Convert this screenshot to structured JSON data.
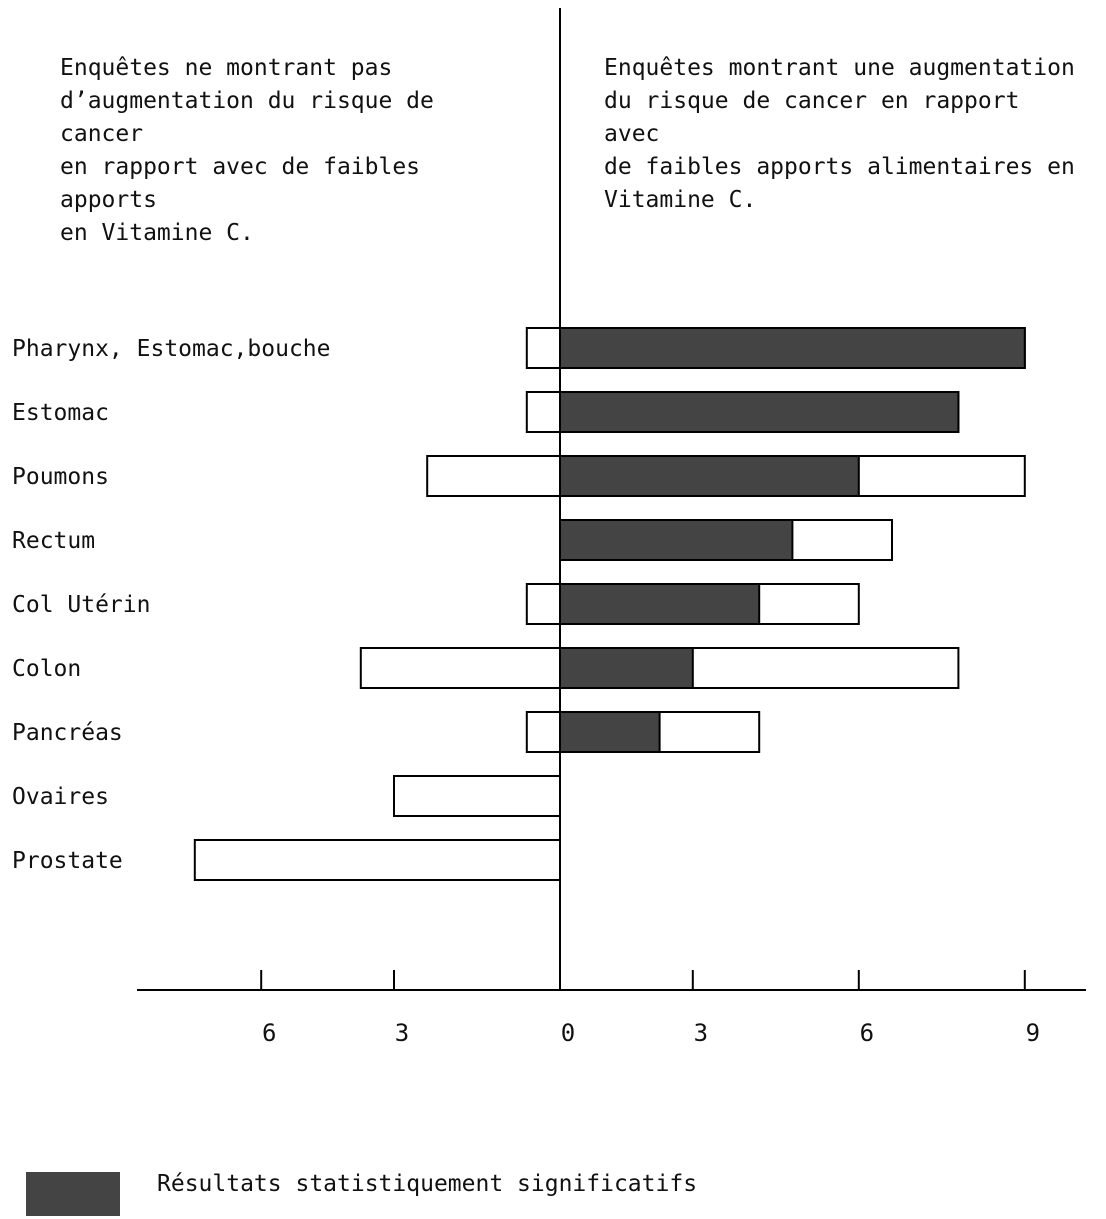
{
  "notes": {
    "left": "Enquêtes ne montrant pas\nd’augmentation du risque de cancer\nen rapport avec de faibles apports\nen Vitamine C.",
    "right": "Enquêtes montrant une augmentation\ndu risque de cancer en rapport avec\nde faibles apports alimentaires en\nVitamine C."
  },
  "legend": {
    "label": "Résultats statistiquement significatifs",
    "color": "#444444"
  },
  "chart_data": {
    "type": "bar",
    "orientation": "horizontal",
    "categories": [
      "Pharynx, Estomac,bouche",
      "Estomac",
      "Poumons",
      "Rectum",
      "Col Utérin",
      "Colon",
      "Pancréas",
      "Ovaires",
      "Prostate"
    ],
    "series": [
      {
        "role": "no_increase",
        "values": [
          1,
          1,
          4,
          0,
          1,
          6,
          1,
          5,
          11
        ],
        "fill": "#ffffff"
      },
      {
        "role": "increase_significant",
        "values": [
          14,
          12,
          9,
          7,
          6,
          4,
          3,
          0,
          0
        ],
        "fill": "#444444"
      },
      {
        "role": "increase_not_significant",
        "values": [
          0,
          0,
          5,
          3,
          3,
          8,
          3,
          0,
          0
        ],
        "fill": "#ffffff"
      }
    ],
    "x_tick_labels": [
      {
        "value": -9,
        "label": "6"
      },
      {
        "value": -5,
        "label": "3"
      },
      {
        "value": 0,
        "label": "0"
      },
      {
        "value": 4,
        "label": "3"
      },
      {
        "value": 9,
        "label": "6"
      },
      {
        "value": 14,
        "label": "9"
      }
    ],
    "xlim": [
      -11.5,
      15.5
    ]
  }
}
